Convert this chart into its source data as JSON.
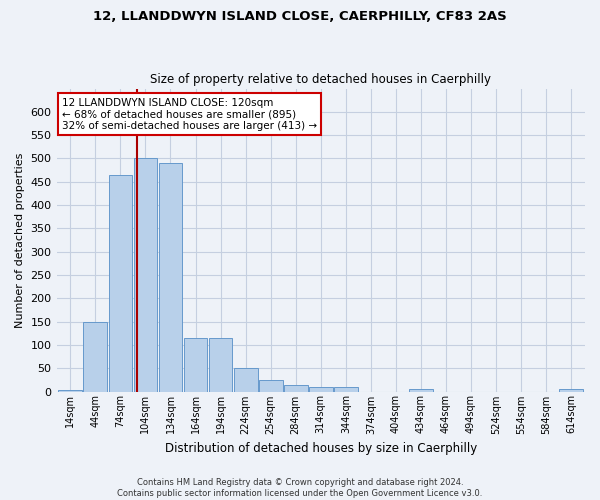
{
  "title_line1": "12, LLANDDWYN ISLAND CLOSE, CAERPHILLY, CF83 2AS",
  "title_line2": "Size of property relative to detached houses in Caerphilly",
  "xlabel": "Distribution of detached houses by size in Caerphilly",
  "ylabel": "Number of detached properties",
  "bar_color": "#b8d0ea",
  "bar_edge_color": "#6699cc",
  "categories": [
    "14sqm",
    "44sqm",
    "74sqm",
    "104sqm",
    "134sqm",
    "164sqm",
    "194sqm",
    "224sqm",
    "254sqm",
    "284sqm",
    "314sqm",
    "344sqm",
    "374sqm",
    "404sqm",
    "434sqm",
    "464sqm",
    "494sqm",
    "524sqm",
    "554sqm",
    "584sqm",
    "614sqm"
  ],
  "values": [
    3,
    150,
    465,
    500,
    490,
    115,
    115,
    50,
    25,
    15,
    10,
    10,
    0,
    0,
    5,
    0,
    0,
    0,
    0,
    0,
    5
  ],
  "ylim": [
    0,
    650
  ],
  "yticks": [
    0,
    50,
    100,
    150,
    200,
    250,
    300,
    350,
    400,
    450,
    500,
    550,
    600
  ],
  "vline_x": 2.67,
  "vline_color": "#aa0000",
  "annotation_text": "12 LLANDDWYN ISLAND CLOSE: 120sqm\n← 68% of detached houses are smaller (895)\n32% of semi-detached houses are larger (413) →",
  "annotation_box_color": "#ffffff",
  "annotation_box_edge_color": "#cc0000",
  "footer_line1": "Contains HM Land Registry data © Crown copyright and database right 2024.",
  "footer_line2": "Contains public sector information licensed under the Open Government Licence v3.0.",
  "background_color": "#eef2f8",
  "plot_bg_color": "#eef2f8",
  "grid_color": "#c5cfe0"
}
